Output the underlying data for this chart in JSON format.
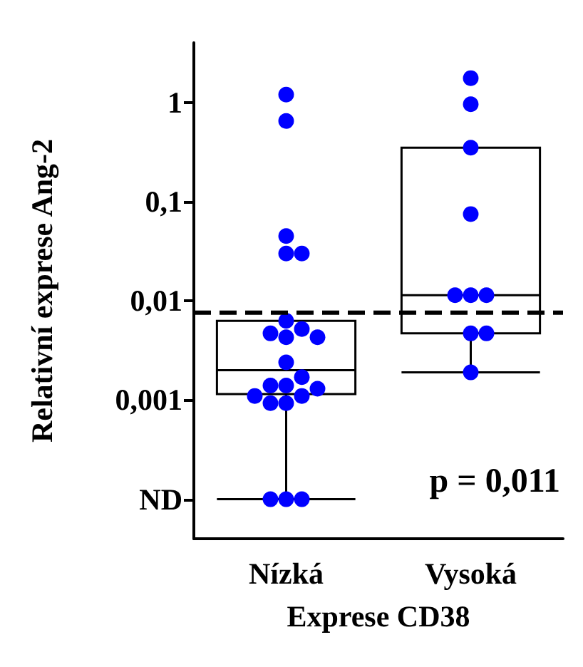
{
  "chart_data": {
    "type": "box",
    "xlabel": "Exprese CD38",
    "ylabel": "Relativní exprese Ang-2",
    "categories": [
      "Nízká",
      "Vysoká"
    ],
    "log": true,
    "ylim": [
      4e-05,
      4
    ],
    "yticks": [
      {
        "value": 0.0001,
        "label": "ND"
      },
      {
        "value": 0.001,
        "label": "0,001"
      },
      {
        "value": 0.01,
        "label": "0,01"
      },
      {
        "value": 0.1,
        "label": "0,1"
      },
      {
        "value": 1,
        "label": "1"
      }
    ],
    "boxes": [
      {
        "low": 0.0001,
        "q1": 0.00115,
        "median": 0.002,
        "q3": 0.0063,
        "high": 0.0063
      },
      {
        "low": 0.0019,
        "q1": 0.0047,
        "median": 0.0114,
        "q3": 0.35,
        "high": 0.35
      }
    ],
    "color": "#000000",
    "series": [
      {
        "type": "scatter",
        "color": "#0000ff",
        "marker": "circle",
        "x": [
          "Nízká",
          "Nízká",
          "Nízká",
          "Nízká",
          "Nízká",
          "Nízká",
          "Nízká",
          "Nízká",
          "Nízká",
          "Nízká",
          "Nízká",
          "Nízká",
          "Nízká",
          "Nízká",
          "Nízká",
          "Nízká",
          "Nízká",
          "Nízká",
          "Nízká",
          "Nízká",
          "Nízká",
          "Nízká",
          "Vysoká",
          "Vysoká",
          "Vysoká",
          "Vysoká",
          "Vysoká",
          "Vysoká",
          "Vysoká",
          "Vysoká",
          "Vysoká",
          "Vysoká"
        ],
        "values": [
          1.2,
          0.65,
          0.045,
          0.03,
          0.03,
          0.0063,
          0.0052,
          0.0047,
          0.0043,
          0.0043,
          0.0024,
          0.0017,
          0.0014,
          0.0014,
          0.0013,
          0.0011,
          0.0011,
          0.00093,
          0.00093,
          0.0001,
          0.0001,
          0.0001,
          1.76,
          0.96,
          0.35,
          0.075,
          0.0114,
          0.0114,
          0.0114,
          0.0047,
          0.0047,
          0.0019
        ]
      }
    ],
    "ref_lines": [
      {
        "axis": "y",
        "value": 0.0076,
        "color": "#000000",
        "line_style": "dashed"
      }
    ],
    "annotations": [
      "p = 0,011"
    ],
    "grid": false
  }
}
